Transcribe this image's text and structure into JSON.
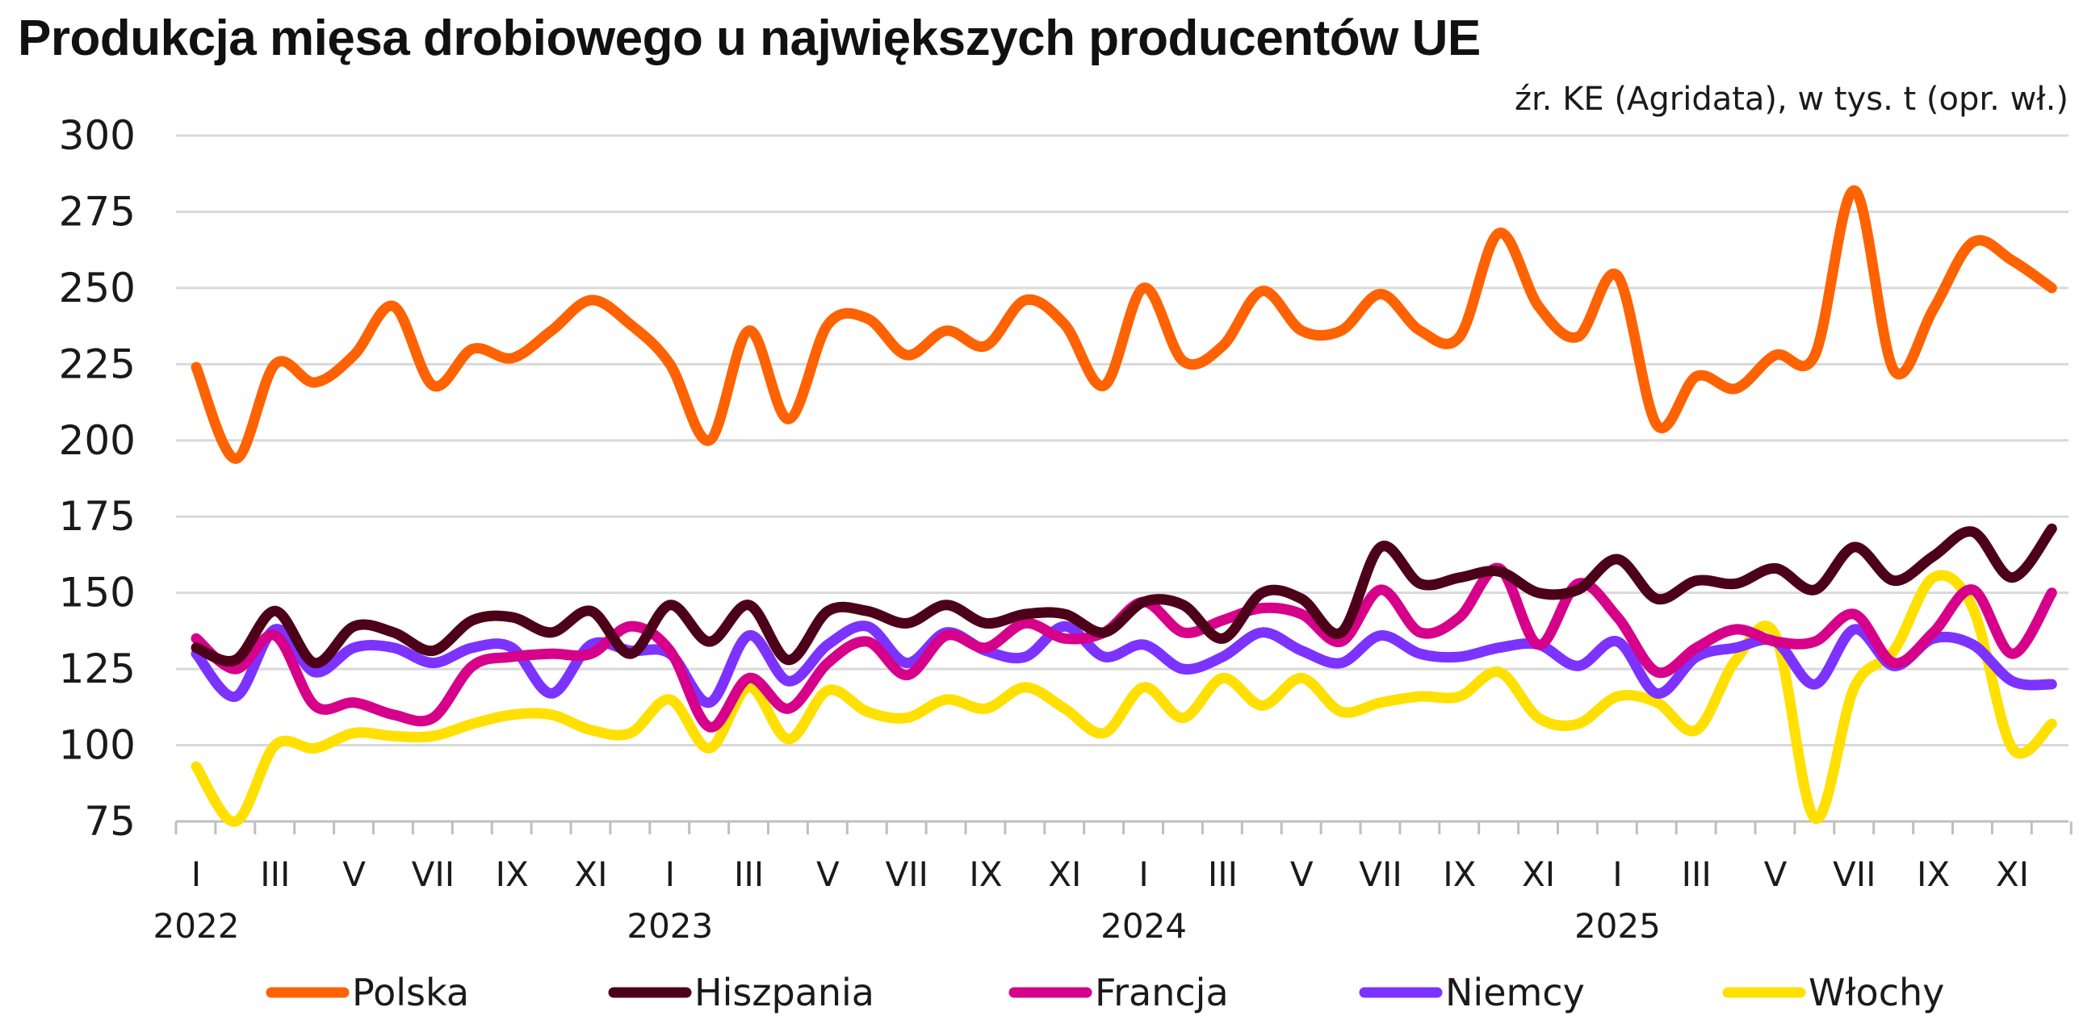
{
  "chart_data": {
    "type": "line",
    "title": "Produkcja mięsa drobiowego u największych producentów UE",
    "source": "źr. KE (Agridata), w tys. t (opr. wł.)",
    "ylim": [
      75,
      300
    ],
    "yticks": [
      75,
      100,
      125,
      150,
      175,
      200,
      225,
      250,
      275,
      300
    ],
    "month_labels": [
      "I",
      "III",
      "V",
      "VII",
      "IX",
      "XI"
    ],
    "years": [
      "2022",
      "2023",
      "2024",
      "2025"
    ],
    "x": [
      "2022-01",
      "2022-02",
      "2022-03",
      "2022-04",
      "2022-05",
      "2022-06",
      "2022-07",
      "2022-08",
      "2022-09",
      "2022-10",
      "2022-11",
      "2022-12",
      "2023-01",
      "2023-02",
      "2023-03",
      "2023-04",
      "2023-05",
      "2023-06",
      "2023-07",
      "2023-08",
      "2023-09",
      "2023-10",
      "2023-11",
      "2023-12",
      "2024-01",
      "2024-02",
      "2024-03",
      "2024-04",
      "2024-05",
      "2024-06",
      "2024-07",
      "2024-08",
      "2024-09",
      "2024-10",
      "2024-11",
      "2024-12",
      "2025-01",
      "2025-02",
      "2025-03",
      "2025-04",
      "2025-05",
      "2025-06",
      "2025-07",
      "2025-08",
      "2025-09",
      "2025-10",
      "2025-11",
      "2025-12"
    ],
    "series": [
      {
        "name": "Polska",
        "color": "#FF6200",
        "values": [
          224,
          194,
          225,
          219,
          228,
          244,
          218,
          230,
          227,
          236,
          246,
          238,
          225,
          200,
          236,
          207,
          238,
          240,
          228,
          236,
          231,
          246,
          238,
          218,
          250,
          226,
          231,
          249,
          236,
          236,
          248,
          236,
          234,
          268,
          244,
          234,
          254,
          205,
          221,
          217,
          228,
          228,
          282,
          223,
          243,
          265,
          259,
          250
        ]
      },
      {
        "name": "Hiszpania",
        "color": "#4D0019",
        "values": [
          132,
          128,
          144,
          127,
          139,
          137,
          131,
          141,
          142,
          137,
          144,
          130,
          146,
          134,
          146,
          128,
          144,
          144,
          140,
          146,
          140,
          143,
          143,
          137,
          147,
          146,
          135,
          150,
          148,
          137,
          165,
          153,
          155,
          157,
          150,
          151,
          161,
          148,
          154,
          153,
          158,
          151,
          165,
          154,
          162,
          170,
          155,
          171
        ]
      },
      {
        "name": "Francja",
        "color": "#D7008A",
        "values": [
          135,
          125,
          136,
          113,
          114,
          110,
          109,
          126,
          129,
          130,
          130,
          139,
          131,
          106,
          122,
          112,
          127,
          134,
          123,
          136,
          132,
          140,
          135,
          137,
          147,
          137,
          141,
          145,
          143,
          134,
          151,
          137,
          142,
          158,
          133,
          153,
          142,
          124,
          132,
          138,
          134,
          134,
          143,
          127,
          137,
          151,
          130,
          150
        ]
      },
      {
        "name": "Niemcy",
        "color": "#7C33FF",
        "values": [
          130,
          116,
          138,
          124,
          132,
          132,
          127,
          132,
          132,
          117,
          133,
          131,
          130,
          114,
          136,
          121,
          133,
          139,
          127,
          137,
          131,
          129,
          139,
          129,
          133,
          125,
          129,
          137,
          131,
          127,
          136,
          130,
          129,
          132,
          133,
          126,
          134,
          117,
          129,
          132,
          134,
          120,
          138,
          126,
          135,
          133,
          121,
          120
        ]
      },
      {
        "name": "Włochy",
        "color": "#FFE000",
        "values": [
          93,
          75,
          100,
          99,
          104,
          103,
          103,
          107,
          110,
          110,
          105,
          104,
          115,
          99,
          119,
          102,
          118,
          111,
          109,
          115,
          112,
          119,
          112,
          104,
          119,
          109,
          122,
          113,
          122,
          111,
          114,
          116,
          116,
          124,
          109,
          107,
          116,
          114,
          105,
          128,
          136,
          76,
          119,
          131,
          155,
          145,
          99,
          107
        ]
      }
    ]
  }
}
